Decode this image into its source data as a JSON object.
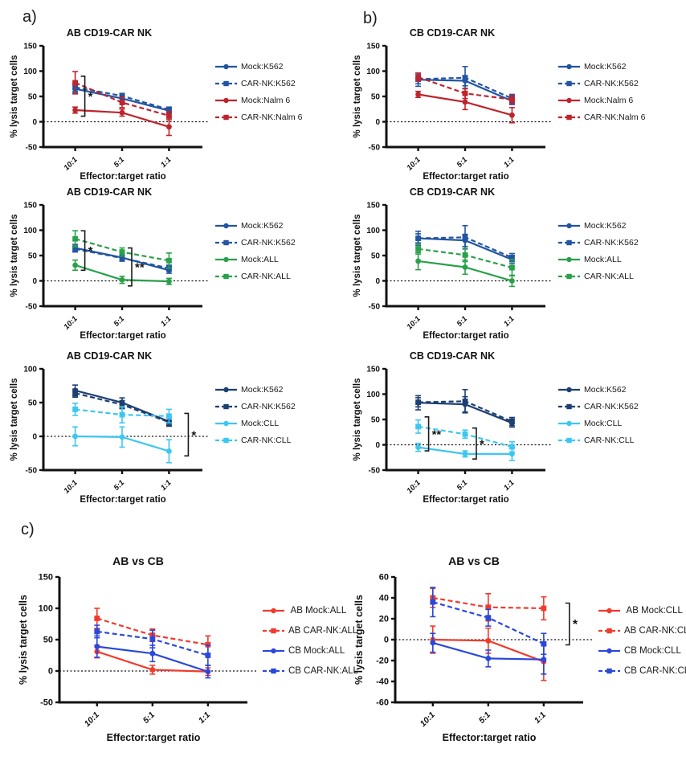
{
  "panels": {
    "a": "a)",
    "b": "b)",
    "c": "c)"
  },
  "figure": {
    "xlabel": "Effector:target ratio",
    "ylabel": "% lysis target cells"
  },
  "colors": {
    "blue": "#2155A2",
    "dark_red": "#BE242B",
    "green": "#2AA04A",
    "navy": "#1D3F72",
    "cyan": "#3CC7F2",
    "bright_red": "#F13A2D",
    "bright_blue": "#2A48D9",
    "axis": "#111111",
    "significance": "#1a1a1a"
  },
  "chart_data": [
    {
      "id": "ab-nalm6",
      "panel": "a",
      "type": "line",
      "size": "small",
      "title": "AB CD19-CAR NK",
      "xlabel": "Effector:target ratio",
      "ylabel": "% lysis target cells",
      "categories": [
        "10:1",
        "5:1",
        "1:1"
      ],
      "ylim": [
        -50,
        150
      ],
      "yticks": [
        150,
        100,
        50,
        0,
        -50
      ],
      "zero_line": true,
      "legend_position": "right",
      "series": [
        {
          "name": "Mock:K562",
          "color": "#2155A2",
          "dash": false,
          "marker": "circle",
          "values": [
            65,
            46,
            22
          ],
          "err": [
            8,
            7,
            5
          ]
        },
        {
          "name": "CAR-NK:K562",
          "color": "#2155A2",
          "dash": true,
          "marker": "square",
          "values": [
            68,
            51,
            24
          ],
          "err": [
            8,
            5,
            5
          ]
        },
        {
          "name": "Mock:Nalm 6",
          "color": "#BE242B",
          "dash": false,
          "marker": "circle",
          "values": [
            23,
            18,
            -10
          ],
          "err": [
            6,
            7,
            17
          ]
        },
        {
          "name": "CAR-NK:Nalm 6",
          "color": "#BE242B",
          "dash": true,
          "marker": "square",
          "values": [
            77,
            38,
            12
          ],
          "err": [
            22,
            10,
            8
          ]
        }
      ],
      "annotations": [
        {
          "x": 0,
          "dx": 12,
          "y1": 11,
          "y2": 90,
          "label": "*"
        }
      ]
    },
    {
      "id": "cb-nalm6",
      "panel": "b",
      "type": "line",
      "size": "small",
      "title": "CB CD19-CAR NK",
      "xlabel": "Effector:target ratio",
      "ylabel": "% lysis target cells",
      "categories": [
        "10:1",
        "5:1",
        "1:1"
      ],
      "ylim": [
        -50,
        150
      ],
      "yticks": [
        150,
        100,
        50,
        0,
        -50
      ],
      "zero_line": true,
      "legend_position": "right",
      "series": [
        {
          "name": "Mock:K562",
          "color": "#2155A2",
          "dash": false,
          "marker": "circle",
          "values": [
            83,
            81,
            41
          ],
          "err": [
            13,
            10,
            7
          ]
        },
        {
          "name": "CAR-NK:K562",
          "color": "#2155A2",
          "dash": true,
          "marker": "square",
          "values": [
            84,
            87,
            46
          ],
          "err": [
            9,
            22,
            8
          ]
        },
        {
          "name": "Mock:Nalm 6",
          "color": "#BE242B",
          "dash": false,
          "marker": "circle",
          "values": [
            54,
            39,
            13
          ],
          "err": [
            6,
            15,
            15
          ]
        },
        {
          "name": "CAR-NK:Nalm 6",
          "color": "#BE242B",
          "dash": true,
          "marker": "square",
          "values": [
            88,
            56,
            44
          ],
          "err": [
            8,
            10,
            8
          ]
        }
      ],
      "annotations": []
    },
    {
      "id": "ab-all",
      "panel": "a",
      "type": "line",
      "size": "small",
      "title": "AB CD19-CAR NK",
      "xlabel": "Effector:target ratio",
      "ylabel": "% lysis target cells",
      "categories": [
        "10:1",
        "5:1",
        "1:1"
      ],
      "ylim": [
        -50,
        150
      ],
      "yticks": [
        150,
        100,
        50,
        0,
        -50
      ],
      "zero_line": true,
      "legend_position": "right",
      "series": [
        {
          "name": "Mock:K562",
          "color": "#2155A2",
          "dash": false,
          "marker": "circle",
          "values": [
            65,
            46,
            21
          ],
          "err": [
            7,
            7,
            6
          ]
        },
        {
          "name": "CAR-NK:K562",
          "color": "#2155A2",
          "dash": true,
          "marker": "square",
          "values": [
            63,
            45,
            25
          ],
          "err": [
            6,
            6,
            6
          ]
        },
        {
          "name": "Mock:ALL",
          "color": "#2AA04A",
          "dash": false,
          "marker": "circle",
          "values": [
            31,
            2,
            -1
          ],
          "err": [
            10,
            7,
            6
          ]
        },
        {
          "name": "CAR-NK:ALL",
          "color": "#2AA04A",
          "dash": true,
          "marker": "square",
          "values": [
            83,
            57,
            40
          ],
          "err": [
            16,
            8,
            15
          ]
        }
      ],
      "annotations": [
        {
          "x": 0,
          "dx": 12,
          "y1": 21,
          "y2": 99,
          "label": "*"
        },
        {
          "x": 1,
          "dx": 12,
          "y1": -10,
          "y2": 65,
          "label": "**"
        }
      ]
    },
    {
      "id": "cb-all",
      "panel": "b",
      "type": "line",
      "size": "small",
      "title": "CB CD19-CAR NK",
      "xlabel": "Effector:target ratio",
      "ylabel": "% lysis target cells",
      "categories": [
        "10:1",
        "5:1",
        "1:1"
      ],
      "ylim": [
        -50,
        150
      ],
      "yticks": [
        150,
        100,
        50,
        0,
        -50
      ],
      "zero_line": true,
      "legend_position": "right",
      "series": [
        {
          "name": "Mock:K562",
          "color": "#2155A2",
          "dash": false,
          "marker": "circle",
          "values": [
            84,
            80,
            42
          ],
          "err": [
            14,
            12,
            8
          ]
        },
        {
          "name": "CAR-NK:K562",
          "color": "#2155A2",
          "dash": true,
          "marker": "square",
          "values": [
            84,
            86,
            46
          ],
          "err": [
            9,
            23,
            8
          ]
        },
        {
          "name": "Mock:ALL",
          "color": "#2AA04A",
          "dash": false,
          "marker": "circle",
          "values": [
            39,
            27,
            0
          ],
          "err": [
            17,
            14,
            11
          ]
        },
        {
          "name": "CAR-NK:ALL",
          "color": "#2AA04A",
          "dash": true,
          "marker": "square",
          "values": [
            63,
            51,
            26
          ],
          "err": [
            10,
            13,
            16
          ]
        }
      ],
      "annotations": []
    },
    {
      "id": "ab-cll",
      "panel": "a",
      "type": "line",
      "size": "small",
      "title": "AB CD19-CAR NK",
      "xlabel": "Effector:target ratio",
      "ylabel": "% lysis target cells",
      "categories": [
        "10:1",
        "5:1",
        "1:1"
      ],
      "ylim": [
        -50,
        100
      ],
      "yticks": [
        100,
        50,
        0,
        -50
      ],
      "zero_line": true,
      "legend_position": "right",
      "series": [
        {
          "name": "Mock:K562",
          "color": "#1D3F72",
          "dash": false,
          "marker": "circle",
          "values": [
            68,
            50,
            22
          ],
          "err": [
            8,
            7,
            6
          ]
        },
        {
          "name": "CAR-NK:K562",
          "color": "#1D3F72",
          "dash": true,
          "marker": "square",
          "values": [
            64,
            47,
            21
          ],
          "err": [
            6,
            6,
            6
          ]
        },
        {
          "name": "Mock:CLL",
          "color": "#3CC7F2",
          "dash": false,
          "marker": "circle",
          "values": [
            0,
            -1,
            -22
          ],
          "err": [
            14,
            15,
            17
          ]
        },
        {
          "name": "CAR-NK:CLL",
          "color": "#3CC7F2",
          "dash": true,
          "marker": "square",
          "values": [
            40,
            32,
            30
          ],
          "err": [
            9,
            12,
            10
          ]
        }
      ],
      "annotations": [
        {
          "x": 2,
          "dx": 24,
          "y1": -29,
          "y2": 34,
          "label": "*"
        }
      ]
    },
    {
      "id": "cb-cll",
      "panel": "b",
      "type": "line",
      "size": "small",
      "title": "CB CD19-CAR NK",
      "xlabel": "Effector:target ratio",
      "ylabel": "% lysis target cells",
      "categories": [
        "10:1",
        "5:1",
        "1:1"
      ],
      "ylim": [
        -50,
        150
      ],
      "yticks": [
        150,
        100,
        50,
        0,
        -50
      ],
      "zero_line": true,
      "legend_position": "right",
      "series": [
        {
          "name": "Mock:K562",
          "color": "#1D3F72",
          "dash": false,
          "marker": "circle",
          "values": [
            83,
            80,
            43
          ],
          "err": [
            14,
            15,
            8
          ]
        },
        {
          "name": "CAR-NK:K562",
          "color": "#1D3F72",
          "dash": true,
          "marker": "square",
          "values": [
            84,
            86,
            46
          ],
          "err": [
            9,
            23,
            8
          ]
        },
        {
          "name": "Mock:CLL",
          "color": "#3CC7F2",
          "dash": false,
          "marker": "circle",
          "values": [
            -5,
            -18,
            -18
          ],
          "err": [
            8,
            6,
            13
          ]
        },
        {
          "name": "CAR-NK:CLL",
          "color": "#3CC7F2",
          "dash": true,
          "marker": "square",
          "values": [
            36,
            21,
            -4
          ],
          "err": [
            13,
            8,
            10
          ]
        }
      ],
      "annotations": [
        {
          "x": 0,
          "dx": 13,
          "y1": -12,
          "y2": 55,
          "label": "**"
        },
        {
          "x": 1,
          "dx": 14,
          "y1": -28,
          "y2": 33,
          "label": "*"
        }
      ]
    },
    {
      "id": "ab-vs-cb-all",
      "panel": "c",
      "type": "line",
      "size": "large",
      "title": "AB vs CB",
      "xlabel": "Effector:target ratio",
      "ylabel": "% lysis target cells",
      "categories": [
        "10:1",
        "5:1",
        "1:1"
      ],
      "ylim": [
        -50,
        150
      ],
      "yticks": [
        150,
        100,
        50,
        0,
        -50
      ],
      "zero_line": true,
      "legend_position": "right",
      "series": [
        {
          "name": " AB Mock:ALL",
          "color": "#F13A2D",
          "dash": false,
          "marker": "circle",
          "values": [
            31,
            2,
            -1
          ],
          "err": [
            10,
            7,
            6
          ]
        },
        {
          "name": "AB CAR-NK:ALL",
          "color": "#F13A2D",
          "dash": true,
          "marker": "square",
          "values": [
            84,
            57,
            42
          ],
          "err": [
            16,
            10,
            14
          ]
        },
        {
          "name": "CB Mock:ALL",
          "color": "#2A48D9",
          "dash": false,
          "marker": "circle",
          "values": [
            39,
            28,
            -1
          ],
          "err": [
            17,
            13,
            10
          ]
        },
        {
          "name": "CB CAR-NK:ALL",
          "color": "#2A48D9",
          "dash": true,
          "marker": "square",
          "values": [
            63,
            51,
            25
          ],
          "err": [
            10,
            14,
            16
          ]
        }
      ],
      "annotations": []
    },
    {
      "id": "ab-vs-cb-cll",
      "panel": "c",
      "type": "line",
      "size": "large",
      "title": "AB vs CB",
      "xlabel": "Effector:target ratio",
      "ylabel": "% lysis target cells",
      "categories": [
        "10:1",
        "5:1",
        "1:1"
      ],
      "ylim": [
        -60,
        60
      ],
      "yticks": [
        60,
        40,
        20,
        0,
        -20,
        -40,
        -60
      ],
      "zero_line": true,
      "legend_position": "right",
      "series": [
        {
          "name": " AB Mock:CLL",
          "color": "#F13A2D",
          "dash": false,
          "marker": "circle",
          "values": [
            0,
            -1,
            -21
          ],
          "err": [
            13,
            12,
            18
          ]
        },
        {
          "name": "AB CAR-NK:CLL",
          "color": "#F13A2D",
          "dash": true,
          "marker": "square",
          "values": [
            40,
            31,
            30
          ],
          "err": [
            9,
            13,
            11
          ]
        },
        {
          "name": "CB Mock:CLL",
          "color": "#2A48D9",
          "dash": false,
          "marker": "circle",
          "values": [
            -3,
            -18,
            -19
          ],
          "err": [
            9,
            8,
            14
          ]
        },
        {
          "name": "CB CAR-NK:CLL",
          "color": "#2A48D9",
          "dash": true,
          "marker": "square",
          "values": [
            36,
            21,
            -4
          ],
          "err": [
            14,
            8,
            10
          ]
        }
      ],
      "annotations": [
        {
          "x": 2,
          "dx": 32,
          "y1": -5,
          "y2": 35,
          "label": "*"
        }
      ]
    }
  ]
}
